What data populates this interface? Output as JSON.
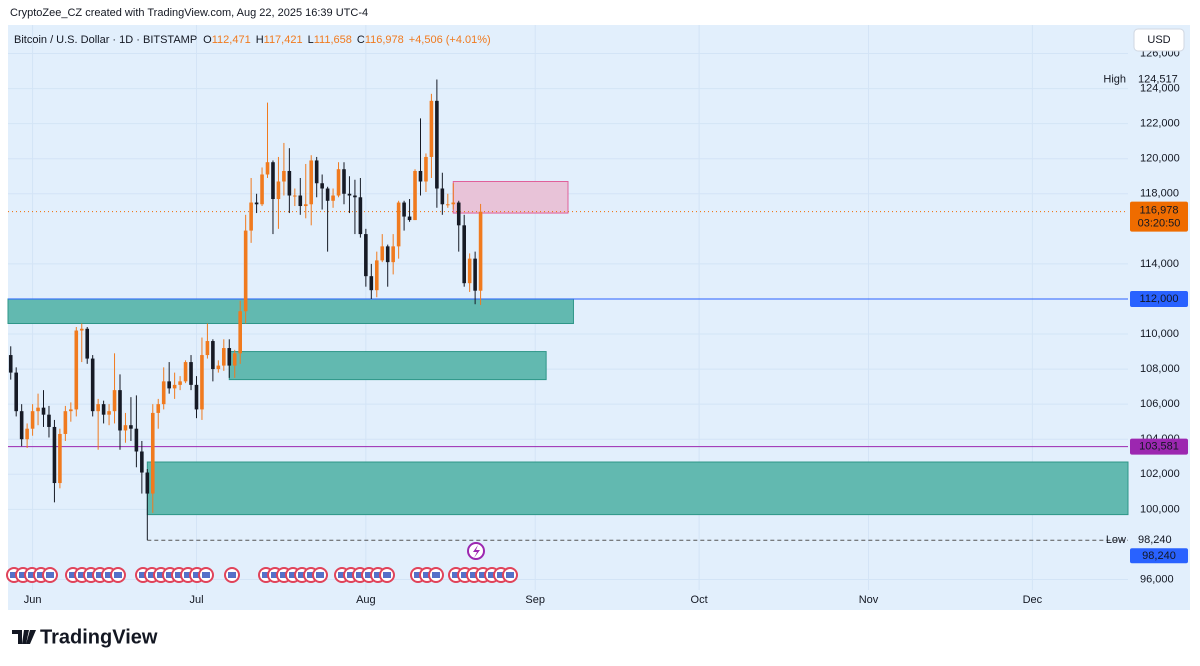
{
  "credit": "CryptoZee_CZ created with TradingView.com, Aug 22, 2025 16:39 UTC-4",
  "brand": "TradingView",
  "chart_data": {
    "type": "candlestick",
    "header": {
      "symbol": "Bitcoin / U.S. Dollar · 1D · BITSTAMP",
      "ohlc": [
        {
          "key": "O",
          "value": "112,471"
        },
        {
          "key": "H",
          "value": "117,421"
        },
        {
          "key": "L",
          "value": "111,658"
        },
        {
          "key": "C",
          "value": "116,978"
        }
      ],
      "change": "+4,506 (+4.01%)"
    },
    "currency": "USD",
    "up_color": "#f07a1e",
    "down_color": "#161a25",
    "background": "#e2effc",
    "grid": true,
    "xlim": [
      -0.5,
      204.5
    ],
    "xticks": [
      {
        "value": 4,
        "label": "Jun"
      },
      {
        "value": 34,
        "label": "Jul"
      },
      {
        "value": 65,
        "label": "Aug"
      },
      {
        "value": 96,
        "label": "Sep"
      },
      {
        "value": 126,
        "label": "Oct"
      },
      {
        "value": 157,
        "label": "Nov"
      },
      {
        "value": 187,
        "label": "Dec"
      }
    ],
    "ylim": [
      95400,
      126200
    ],
    "yticks": [
      {
        "value": 96000,
        "label": "96,000"
      },
      {
        "value": 100000,
        "label": "100,000"
      },
      {
        "value": 102000,
        "label": "102,000"
      },
      {
        "value": 104000,
        "label": "104,000"
      },
      {
        "value": 106000,
        "label": "106,000"
      },
      {
        "value": 108000,
        "label": "108,000"
      },
      {
        "value": 110000,
        "label": "110,000"
      },
      {
        "value": 114000,
        "label": "114,000"
      },
      {
        "value": 118000,
        "label": "118,000"
      },
      {
        "value": 120000,
        "label": "120,000"
      },
      {
        "value": 122000,
        "label": "122,000"
      },
      {
        "value": 124000,
        "label": "124,000"
      },
      {
        "value": 126000,
        "label": "126,000"
      }
    ],
    "open": [
      108800,
      107800,
      105600,
      104000,
      104600,
      105600,
      105800,
      105400,
      104700,
      101500,
      104300,
      105600,
      105700,
      110200,
      110300,
      108600,
      105600,
      106000,
      105400,
      105600,
      106800,
      104500,
      104800,
      104600,
      103300,
      102100,
      100900,
      105500,
      106000,
      107300,
      106900,
      107100,
      107300,
      108400,
      107100,
      105700,
      108800,
      109600,
      108000,
      108200,
      109200,
      108200,
      108900,
      111300,
      115900,
      117500,
      117400,
      119100,
      119800,
      117700,
      118700,
      119300,
      117900,
      117900,
      117300,
      117400,
      119900,
      118600,
      118300,
      117600,
      117900,
      119400,
      118000,
      117900,
      117800,
      115700,
      113300,
      112500,
      114200,
      115000,
      114100,
      115000,
      117500,
      116700,
      116500,
      119300,
      118700,
      120100,
      123300,
      118300,
      117400,
      117400,
      117500,
      116200,
      112900,
      114300,
      112471
    ],
    "high": [
      109300,
      108100,
      106000,
      104900,
      106000,
      106600,
      106800,
      105900,
      105100,
      104600,
      105900,
      106100,
      110400,
      110600,
      110400,
      108800,
      106300,
      106200,
      106000,
      108900,
      107700,
      105500,
      106400,
      106500,
      103900,
      102300,
      106000,
      106300,
      108100,
      108400,
      107800,
      107600,
      108500,
      108800,
      107600,
      109800,
      110600,
      109700,
      108500,
      109700,
      109700,
      109100,
      111900,
      116800,
      118900,
      118000,
      119500,
      123200,
      119900,
      120100,
      120900,
      120600,
      118300,
      118900,
      119700,
      120200,
      120100,
      119100,
      118400,
      118300,
      119800,
      119800,
      119000,
      118800,
      118900,
      116000,
      114000,
      114700,
      115700,
      115100,
      115700,
      117600,
      117600,
      117700,
      119400,
      122300,
      120300,
      123700,
      124517,
      119200,
      118000,
      118600,
      117600,
      116800,
      114600,
      114700,
      117421
    ],
    "low": [
      107400,
      105300,
      103600,
      103500,
      104200,
      104800,
      104700,
      104100,
      100400,
      101200,
      103900,
      105000,
      105300,
      108400,
      108300,
      105300,
      103400,
      104900,
      104800,
      104900,
      103400,
      103800,
      103900,
      102400,
      100900,
      98240,
      99800,
      104600,
      105700,
      106600,
      106300,
      106800,
      107200,
      106800,
      105200,
      105100,
      108600,
      107300,
      107800,
      107900,
      107500,
      107500,
      108300,
      110600,
      115200,
      116900,
      117300,
      118900,
      115700,
      116000,
      117900,
      116900,
      117300,
      116800,
      116600,
      116200,
      117800,
      117100,
      114700,
      117200,
      117800,
      117400,
      116900,
      115700,
      115500,
      112700,
      112000,
      112100,
      114100,
      112700,
      113400,
      114300,
      115900,
      116400,
      116500,
      117900,
      118100,
      118900,
      117200,
      116800,
      117200,
      117100,
      114700,
      112700,
      112400,
      111700,
      111658
    ],
    "close": [
      107800,
      105600,
      104000,
      104600,
      105600,
      105800,
      105400,
      104700,
      101500,
      104300,
      105600,
      105700,
      110200,
      110300,
      108600,
      105600,
      106000,
      105400,
      105600,
      106800,
      104500,
      104800,
      104600,
      103300,
      102100,
      100900,
      105500,
      106000,
      107300,
      106900,
      107100,
      107300,
      108400,
      107100,
      105700,
      108800,
      109600,
      108000,
      108200,
      109200,
      108200,
      108900,
      111300,
      115900,
      117500,
      117400,
      119100,
      119800,
      117700,
      118700,
      119300,
      117900,
      117900,
      117300,
      117400,
      119900,
      118600,
      118300,
      117600,
      117900,
      119400,
      118000,
      117900,
      117800,
      115700,
      113300,
      112500,
      114200,
      115000,
      114100,
      115000,
      117500,
      116700,
      116500,
      119300,
      118700,
      120100,
      123300,
      118300,
      117400,
      117400,
      117500,
      116200,
      112900,
      114300,
      112471,
      116978
    ],
    "zones": [
      {
        "top": 118700,
        "bottom": 116900,
        "start": 81,
        "end": 102,
        "color": "#e8c3d8",
        "border": "#e0609a"
      },
      {
        "top": 112000,
        "bottom": 110600,
        "start": -0.5,
        "end": 103,
        "color": "#62b9b0",
        "border": "#2e9688"
      },
      {
        "top": 109000,
        "bottom": 107400,
        "start": 40,
        "end": 98,
        "color": "#62b9b0",
        "border": "#2e9688"
      },
      {
        "top": 102700,
        "bottom": 99700,
        "start": 25,
        "end": 204.5,
        "color": "#62b9b0",
        "border": "#2e9688"
      }
    ],
    "levels": [
      {
        "value": 112000,
        "label": "112,000",
        "color": "#2962ff"
      },
      {
        "value": 103581,
        "label": "103,581",
        "color": "#9c27b0"
      }
    ],
    "last_price": {
      "value": 116978,
      "label": "116,978",
      "countdown": "03:20:50",
      "color": "#ef6c00"
    },
    "high_marker": {
      "text": "High",
      "value": 124517,
      "label": "124,517"
    },
    "low_marker": {
      "text": "Low",
      "value": 98240,
      "label": "98,240",
      "start": 25,
      "color": "#2962ff"
    }
  }
}
